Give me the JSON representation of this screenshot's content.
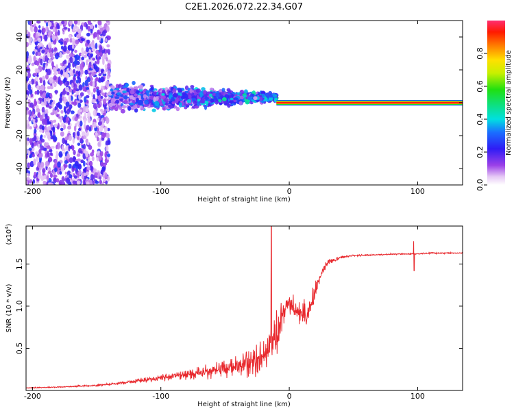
{
  "title": "C2E1.2026.072.22.34.G07",
  "colors": {
    "snr_line": "#e8282d",
    "axis": "#000000",
    "background": "#ffffff"
  },
  "chart_data": [
    {
      "type": "heatmap",
      "name": "spectrogram",
      "xlabel": "Height of straight line (km)",
      "ylabel": "Frequency (Hz)",
      "xlim": [
        -205,
        135
      ],
      "ylim": [
        -50,
        50
      ],
      "x_ticks": [
        -200,
        -100,
        0,
        100
      ],
      "x_tick_labels": [
        "-200",
        "-100",
        "0",
        "100"
      ],
      "y_ticks": [
        -40,
        -20,
        0,
        20,
        40
      ],
      "y_tick_labels": [
        "-40",
        "-20",
        "0",
        "20",
        "40"
      ],
      "colorbar": {
        "label": "Normalized spectral amplitude",
        "range": [
          0,
          1
        ],
        "ticks": [
          0.0,
          0.2,
          0.4,
          0.6,
          0.8
        ],
        "tick_labels": [
          "0.0",
          "0.2",
          "0.4",
          "0.6",
          "0.8"
        ]
      },
      "features": {
        "noise_region_x": [
          -205,
          -140
        ],
        "scatter_region_x": [
          -140,
          -10
        ],
        "steady_tone_start_x": -10,
        "steady_tone_freq_hz": 0,
        "steady_tone_amplitude": 1.0
      }
    },
    {
      "type": "line",
      "name": "snr",
      "xlabel": "Height of straight line (km)",
      "ylabel": "SNR (10 * v/v)",
      "y_multiplier_label": "(x10",
      "y_multiplier_exp": "4",
      "xlim": [
        -205,
        135
      ],
      "ylim": [
        0.0,
        1.95
      ],
      "x_ticks": [
        -200,
        -100,
        0,
        100
      ],
      "x_tick_labels": [
        "-200",
        "-100",
        "0",
        "100"
      ],
      "y_ticks": [
        0.5,
        1.0,
        1.5
      ],
      "y_tick_labels": [
        "0.5",
        "1.0",
        "1.5"
      ],
      "series": [
        {
          "name": "SNR",
          "envelope_x": [
            -205,
            -180,
            -150,
            -130,
            -110,
            -90,
            -70,
            -50,
            -35,
            -25,
            -18,
            -12,
            -8,
            -4,
            0,
            5,
            10,
            15,
            20,
            25,
            30,
            40,
            50,
            70,
            90,
            97,
            100,
            110,
            120,
            135
          ],
          "envelope_mean": [
            0.03,
            0.04,
            0.06,
            0.09,
            0.13,
            0.17,
            0.21,
            0.26,
            0.3,
            0.36,
            0.45,
            0.55,
            0.7,
            0.95,
            1.05,
            0.95,
            0.9,
            0.95,
            1.15,
            1.4,
            1.52,
            1.58,
            1.6,
            1.61,
            1.62,
            1.62,
            1.62,
            1.63,
            1.63,
            1.63
          ],
          "envelope_spread": [
            0.01,
            0.01,
            0.02,
            0.03,
            0.05,
            0.08,
            0.12,
            0.18,
            0.25,
            0.35,
            0.5,
            0.6,
            0.45,
            0.3,
            0.2,
            0.2,
            0.25,
            0.3,
            0.2,
            0.12,
            0.06,
            0.03,
            0.02,
            0.015,
            0.015,
            0.015,
            0.015,
            0.015,
            0.015,
            0.015
          ],
          "spike": {
            "x": 97,
            "y_high": 1.77,
            "y_low": 1.42
          },
          "peak": {
            "x": -14,
            "y": 1.95
          }
        }
      ]
    }
  ]
}
